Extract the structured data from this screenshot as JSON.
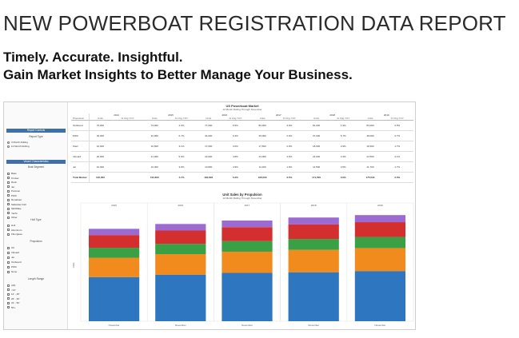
{
  "header": {
    "title": "NEW POWERBOAT REGISTRATION DATA REPORT",
    "tagline1": "Timely. Accurate. Insightful.",
    "tagline2": "Gain Market Insights to Better Manage Your Business."
  },
  "dashboard": {
    "sidebar": {
      "report_controls": "Report Controls",
      "report_type": "Report Type",
      "report_type_options": [
        "3 Month Rolling",
        "12 Month Rolling"
      ],
      "vessel_characteristics": "Vessel Characteristics",
      "boat_segment": "Boat Segment",
      "segment_options": [
        "Bass",
        "Cruiser",
        "Deck",
        "Jet",
        "Pontoon",
        "PWC",
        "Runabout",
        "Saltwater Fish",
        "Ski/Wake",
        "Yacht",
        "Other"
      ],
      "hull_type": "Hull Type",
      "hull_options": [
        "Hull",
        "Aluminum",
        "Fiberglass"
      ],
      "propulsion": "Propulsion",
      "propulsion_options": [
        "I/O",
        "Inboard",
        "Jet",
        "Outboard",
        "PWC",
        "None"
      ],
      "length_range": "Length Range",
      "length_options": [
        "(All)",
        "<14'",
        "14' - 25'",
        "26' - 30'",
        "31' - 50'",
        "50'+"
      ]
    },
    "table": {
      "title": "US Powerboat Market",
      "subtitle": "12 Month Rolling Through November",
      "row_header": "Propulsion",
      "years": [
        "2014",
        "2015",
        "2016",
        "2017",
        "2018",
        "2019"
      ],
      "col_units": "Units",
      "col_change": "% Chg YOY",
      "rows": [
        {
          "label": "Outboard",
          "cells": [
            "70,000",
            "",
            "73,000",
            "4.3%",
            "77,000",
            "5.5%",
            "80,000",
            "3.9%",
            "81,000",
            "1.3%",
            "83,000",
            "2.5%"
          ]
        },
        {
          "label": "PWC",
          "cells": [
            "30,000",
            "",
            "32,000",
            "6.7%",
            "34,000",
            "6.3%",
            "35,000",
            "2.9%",
            "37,000",
            "5.7%",
            "38,000",
            "2.7%"
          ]
        },
        {
          "label": "Stern",
          "cells": [
            "16,000",
            "",
            "16,500",
            "3.1%",
            "17,000",
            "3.0%",
            "17,500",
            "2.9%",
            "18,000",
            "2.9%",
            "18,300",
            "1.7%"
          ]
        },
        {
          "label": "Inboard",
          "cells": [
            "20,000",
            "",
            "21,000",
            "5.0%",
            "22,000",
            "4.8%",
            "23,000",
            "4.5%",
            "24,000",
            "4.3%",
            "24,500",
            "2.1%"
          ]
        },
        {
          "label": "Jet",
          "cells": [
            "10,000",
            "",
            "10,300",
            "3.0%",
            "10,800",
            "4.9%",
            "11,000",
            "1.9%",
            "11,500",
            "4.5%",
            "11,700",
            "1.7%"
          ]
        },
        {
          "label": "Total Market",
          "cells": [
            "146,000",
            "",
            "152,800",
            "4.7%",
            "160,800",
            "5.2%",
            "166,500",
            "3.5%",
            "171,500",
            "3.0%",
            "175,500",
            "2.3%"
          ]
        }
      ]
    },
    "chart_data": {
      "type": "bar",
      "title": "Unit Sales by Propulsion",
      "subtitle": "12 Month Rolling Through November",
      "ylabel": "Units",
      "panels": [
        "2015",
        "2016",
        "2017",
        "2018",
        "2019"
      ],
      "xlabel": "November",
      "ylim": [
        0,
        185000
      ],
      "series": [
        {
          "name": "Outboard",
          "color": "#2e77c0",
          "values": [
            73000,
            77000,
            80000,
            81000,
            83000
          ]
        },
        {
          "name": "PWC",
          "color": "#f28b1d",
          "values": [
            32000,
            34000,
            35000,
            37000,
            38000
          ]
        },
        {
          "name": "Stern",
          "color": "#3aa046",
          "values": [
            16500,
            17000,
            17500,
            18000,
            18300
          ]
        },
        {
          "name": "Inboard",
          "color": "#d32f2f",
          "values": [
            21000,
            22000,
            23000,
            24000,
            24500
          ]
        },
        {
          "name": "Jet",
          "color": "#9c6ad0",
          "values": [
            10300,
            10800,
            11000,
            11500,
            11700
          ]
        }
      ]
    }
  }
}
